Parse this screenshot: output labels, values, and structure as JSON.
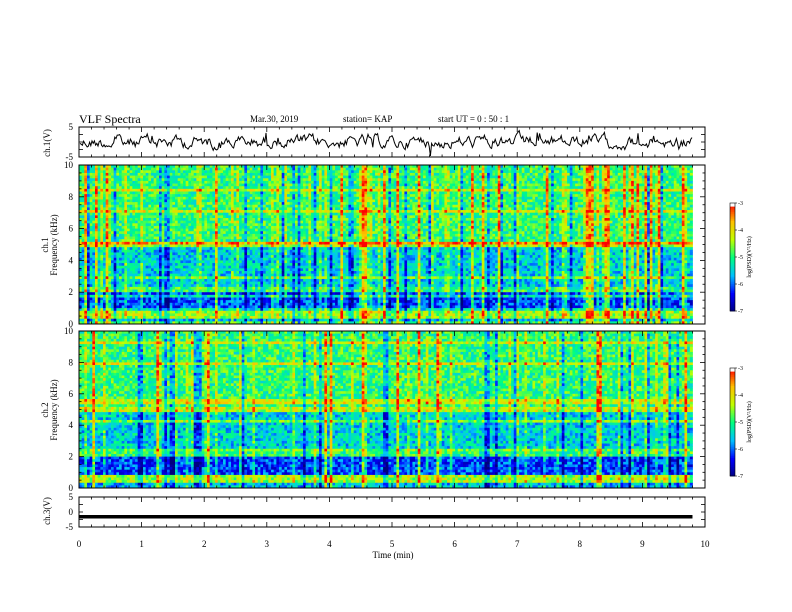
{
  "header": {
    "title": "VLF Spectra",
    "date": "Mar.30, 2019",
    "station": "station= KAP",
    "start": "start  UT =   0  : 50 : 1"
  },
  "colors": {
    "background": "#ffffff",
    "axis": "#000000",
    "colormap": [
      "#00007f",
      "#0000ff",
      "#00c0ff",
      "#00ff80",
      "#c0ff00",
      "#ffc000",
      "#ff0000",
      "#ffffff"
    ]
  },
  "chart_data": [
    {
      "type": "line",
      "id": "ch1",
      "ylabel": "ch.1(V)",
      "ylim": [
        -5,
        5
      ],
      "yticks": [
        "5",
        "-5"
      ],
      "series": [
        {
          "values_description_only": false,
          "mean": 0.0,
          "amplitude": 2.5
        }
      ]
    },
    {
      "type": "heatmap",
      "id": "ch1-spectrogram",
      "ylabel_top": "ch.1",
      "ylabel": "Frequency  (kHz)",
      "ylim": [
        0,
        10
      ],
      "yticks": [
        "0",
        "2",
        "4",
        "6",
        "8",
        "10"
      ],
      "xlim": [
        0,
        9.8
      ],
      "colorbar": {
        "label": "log(PSD)(V²/Hz)",
        "range": [
          -7,
          -3
        ],
        "ticks": [
          "-3",
          "-4",
          "-5",
          "-6",
          "-7"
        ]
      }
    },
    {
      "type": "heatmap",
      "id": "ch2-spectrogram",
      "ylabel_top": "ch.2",
      "ylabel": "Frequency  (kHz)",
      "ylim": [
        0,
        10
      ],
      "yticks": [
        "0",
        "2",
        "4",
        "6",
        "8",
        "10"
      ],
      "xlim": [
        0,
        9.8
      ],
      "colorbar": {
        "label": "log(PSD)(V²/Hz)",
        "range": [
          -7,
          -3
        ],
        "ticks": [
          "-3",
          "-4",
          "-5",
          "-6",
          "-7"
        ]
      }
    },
    {
      "type": "line",
      "id": "ch3",
      "ylabel": "ch.3(V)",
      "ylim": [
        -5,
        5
      ],
      "yticks": [
        "5",
        "0",
        "-5"
      ],
      "series": [
        {
          "constant": -1.6
        }
      ]
    }
  ],
  "xaxis": {
    "label": "Time  (min)",
    "ticks": [
      "0",
      "1",
      "2",
      "3",
      "4",
      "5",
      "6",
      "7",
      "8",
      "9",
      "10"
    ],
    "xlim": [
      0,
      10
    ]
  }
}
